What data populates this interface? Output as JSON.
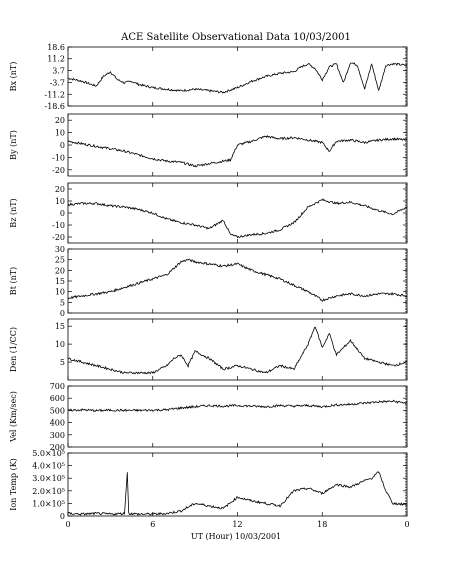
{
  "chart_data": {
    "type": "line",
    "title": "ACE Satellite Observational Data   10/03/2001",
    "xlabel": "UT (Hour)   10/03/2001",
    "xlim": [
      0,
      24
    ],
    "xticks": [
      "0",
      "6",
      "12",
      "18",
      "0"
    ],
    "line_color": "#000000",
    "panels": [
      {
        "ylabel": "Bx (nT)",
        "ylim": [
          -18.6,
          18.6
        ],
        "yticks": [
          {
            "v": 18.6,
            "label": "18.6"
          },
          {
            "v": 11.2,
            "label": "11.2"
          },
          {
            "v": 3.7,
            "label": "3.7"
          },
          {
            "v": -3.7,
            "label": "-3.7"
          },
          {
            "v": -11.2,
            "label": "-11.2"
          },
          {
            "v": -18.6,
            "label": "-18.6"
          }
        ],
        "x": [
          0,
          1,
          2,
          2.5,
          3,
          3.5,
          4,
          4.5,
          5,
          6,
          7,
          8,
          9,
          10,
          11,
          12,
          13,
          14,
          15,
          16,
          16.5,
          17,
          17.5,
          18,
          18.5,
          19,
          19.5,
          20,
          20.5,
          21,
          21.5,
          22,
          22.5,
          23,
          24
        ],
        "y": [
          -1,
          -3,
          -6,
          0,
          3,
          -2,
          -4,
          -3,
          -5,
          -7,
          -8,
          -9,
          -8,
          -9,
          -10,
          -7,
          -3,
          0,
          2,
          3,
          6,
          8,
          5,
          -2,
          6,
          8,
          -4,
          9,
          7,
          -8,
          8,
          -9,
          7,
          8,
          7
        ]
      },
      {
        "ylabel": "By (nT)",
        "ylim": [
          -25,
          25
        ],
        "yticks": [
          {
            "v": 20,
            "label": "20"
          },
          {
            "v": 10,
            "label": "10"
          },
          {
            "v": 0,
            "label": "0"
          },
          {
            "v": -10,
            "label": "-10"
          },
          {
            "v": -20,
            "label": "-20"
          }
        ],
        "x": [
          0,
          1,
          2,
          3,
          4,
          5,
          6,
          7,
          8,
          9,
          10,
          11,
          11.5,
          12,
          13,
          14,
          15,
          16,
          17,
          18,
          18.5,
          19,
          20,
          21,
          22,
          23,
          24
        ],
        "y": [
          3,
          1,
          -1,
          -3,
          -5,
          -8,
          -11,
          -13,
          -14,
          -17,
          -15,
          -13,
          -12,
          0,
          3,
          7,
          5,
          6,
          4,
          2,
          -5,
          3,
          4,
          2,
          4,
          5,
          4
        ]
      },
      {
        "ylabel": "Bz (nT)",
        "ylim": [
          -25,
          25
        ],
        "yticks": [
          {
            "v": 20,
            "label": "20"
          },
          {
            "v": 10,
            "label": "10"
          },
          {
            "v": 0,
            "label": "0"
          },
          {
            "v": -10,
            "label": "-10"
          },
          {
            "v": -20,
            "label": "-20"
          }
        ],
        "x": [
          0,
          1,
          2,
          3,
          4,
          5,
          6,
          7,
          8,
          9,
          10,
          11,
          11.5,
          12,
          13,
          14,
          15,
          16,
          17,
          18,
          19,
          20,
          21,
          22,
          23,
          24
        ],
        "y": [
          7,
          8,
          8,
          6,
          5,
          3,
          0,
          -5,
          -8,
          -10,
          -13,
          -6,
          -18,
          -20,
          -18,
          -17,
          -14,
          -8,
          5,
          11,
          8,
          9,
          6,
          2,
          -1,
          5
        ]
      },
      {
        "ylabel": "Bt (nT)",
        "ylim": [
          0,
          30
        ],
        "yticks": [
          {
            "v": 30,
            "label": "30"
          },
          {
            "v": 25,
            "label": "25"
          },
          {
            "v": 20,
            "label": "20"
          },
          {
            "v": 15,
            "label": "15"
          },
          {
            "v": 10,
            "label": "10"
          },
          {
            "v": 5,
            "label": "5"
          },
          {
            "v": 0,
            "label": "0"
          }
        ],
        "x": [
          0,
          1,
          2,
          3,
          4,
          5,
          6,
          7,
          8,
          8.5,
          9,
          10,
          11,
          12,
          13,
          14,
          15,
          16,
          17,
          18,
          19,
          20,
          21,
          22,
          23,
          24
        ],
        "y": [
          7,
          8,
          9,
          10,
          12,
          14,
          16,
          18,
          24,
          25,
          24,
          23,
          22,
          23,
          20,
          18,
          16,
          13,
          10,
          6,
          8,
          9,
          8,
          9,
          9,
          8
        ]
      },
      {
        "ylabel": "Den (1/CC)",
        "ylim": [
          0,
          17
        ],
        "yticks": [
          {
            "v": 15,
            "label": "15"
          },
          {
            "v": 10,
            "label": "10"
          },
          {
            "v": 5,
            "label": "5"
          }
        ],
        "x": [
          0,
          1,
          2,
          3,
          4,
          5,
          6,
          7,
          7.5,
          8,
          8.5,
          9,
          10,
          11,
          12,
          13,
          14,
          15,
          16,
          17,
          17.5,
          18,
          18.5,
          19,
          20,
          21,
          22,
          23,
          24
        ],
        "y": [
          6,
          5,
          4,
          3,
          2,
          2,
          2,
          4,
          6,
          7,
          4,
          8,
          6,
          3,
          4,
          3,
          2,
          4,
          3,
          10,
          15,
          9,
          13,
          7,
          11,
          6,
          5,
          4,
          5
        ]
      },
      {
        "ylabel": "Vel (Km/sec)",
        "ylim": [
          200,
          700
        ],
        "yticks": [
          {
            "v": 700,
            "label": "700"
          },
          {
            "v": 600,
            "label": "600"
          },
          {
            "v": 500,
            "label": "500"
          },
          {
            "v": 400,
            "label": "400"
          },
          {
            "v": 300,
            "label": "300"
          },
          {
            "v": 200,
            "label": "200"
          }
        ],
        "x": [
          0,
          1,
          2,
          3,
          4,
          5,
          6,
          7,
          8,
          9,
          10,
          11,
          12,
          13,
          14,
          15,
          16,
          17,
          18,
          19,
          20,
          21,
          22,
          23,
          24
        ],
        "y": [
          500,
          505,
          498,
          502,
          500,
          500,
          502,
          505,
          520,
          530,
          540,
          535,
          540,
          535,
          530,
          540,
          535,
          540,
          530,
          545,
          550,
          560,
          570,
          575,
          560
        ]
      },
      {
        "ylabel": "Ion Temp (K)",
        "ylim": [
          0,
          500000
        ],
        "yticks": [
          {
            "v": 500000,
            "label": "5.0×10⁵"
          },
          {
            "v": 400000,
            "label": "4.0×10⁵"
          },
          {
            "v": 300000,
            "label": "3.0×10⁵"
          },
          {
            "v": 200000,
            "label": "2.0×10⁵"
          },
          {
            "v": 100000,
            "label": "1.0×10⁵"
          },
          {
            "v": 0,
            "label": "0"
          }
        ],
        "x": [
          0,
          1,
          2,
          3,
          4,
          4.2,
          4.3,
          5,
          6,
          7,
          8,
          9,
          10,
          11,
          12,
          13,
          14,
          15,
          16,
          17,
          18,
          19,
          20,
          21,
          21.5,
          22,
          22.5,
          23,
          24
        ],
        "y": [
          20000,
          15000,
          20000,
          15000,
          20000,
          350000,
          20000,
          15000,
          15000,
          20000,
          40000,
          100000,
          80000,
          60000,
          150000,
          120000,
          100000,
          80000,
          200000,
          220000,
          180000,
          250000,
          230000,
          280000,
          300000,
          350000,
          200000,
          100000,
          90000
        ]
      }
    ]
  }
}
